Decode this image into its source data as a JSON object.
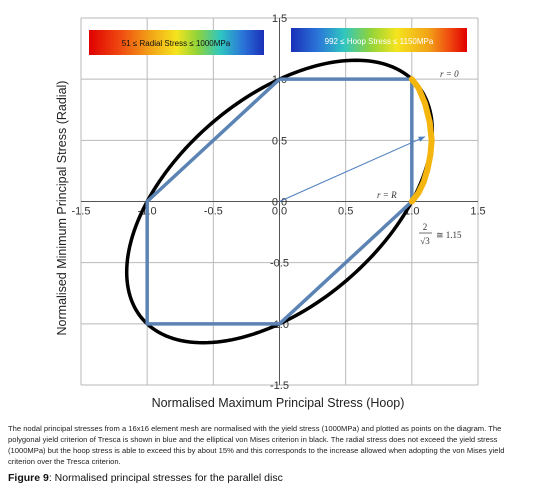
{
  "chart_data": {
    "type": "scatter",
    "xlabel": "Normalised Maximum Principal Stress (Hoop)",
    "ylabel": "Normalised Minimum Principal Stress (Radial)",
    "xlim": [
      -1.5,
      1.5
    ],
    "ylim": [
      -1.5,
      1.5
    ],
    "x_ticks": [
      "-1.5",
      "-1.0",
      "-0.5",
      "0.0",
      "0.5",
      "1.0",
      "1.5"
    ],
    "y_ticks": [
      "1.5",
      "1.0",
      "0.5",
      "0.0",
      "-0.5",
      "-1.0",
      "-1.5"
    ],
    "grid": true,
    "series": [
      {
        "kind": "tresca-polygon",
        "color": "#5b84b4",
        "points": [
          [
            0,
            1
          ],
          [
            1,
            1
          ],
          [
            1,
            0
          ],
          [
            0,
            -1
          ],
          [
            -1,
            -1
          ],
          [
            -1,
            0
          ],
          [
            0,
            1
          ]
        ]
      },
      {
        "kind": "von-mises-ellipse",
        "color": "#000000",
        "equation": "x^2 - x*y + y^2 = 1"
      },
      {
        "kind": "nodal-stress-points",
        "color": "#f5b50f",
        "x": [
          1.0,
          1.05,
          1.1,
          1.135,
          1.15,
          1.14,
          1.12,
          1.09,
          1.05,
          1.0
        ],
        "y": [
          1.0,
          0.93,
          0.8,
          0.65,
          0.5,
          0.38,
          0.27,
          0.16,
          0.07,
          0.0
        ]
      }
    ],
    "annotations": {
      "r0": "r = 0",
      "rR": "r = R",
      "factor_numerator": "2",
      "factor_denominator": "√3",
      "factor_value": "≅ 1.15"
    },
    "colorbars": [
      {
        "label": "51 ≤ Radial Stress ≤ 1000MPa"
      },
      {
        "label": "992 ≤ Hoop Stress ≤ 1150MPa"
      }
    ]
  },
  "caption": "The nodal principal stresses from a 16x16 element mesh are normalised with the yield stress (1000MPa) and plotted as points on the diagram.  The polygonal yield criterion of Tresca is shown in blue and the elliptical von Mises criterion in black.  The radial stress does not exceed the yield stress (1000MPa) but the hoop stress is able to exceed this by about 15% and this corresponds to the increase allowed when adopting the von Mises yield criterion over the Tresca criterion.",
  "figure": {
    "label": "Figure 9",
    "title": ":  Normalised principal stresses for the parallel disc"
  }
}
